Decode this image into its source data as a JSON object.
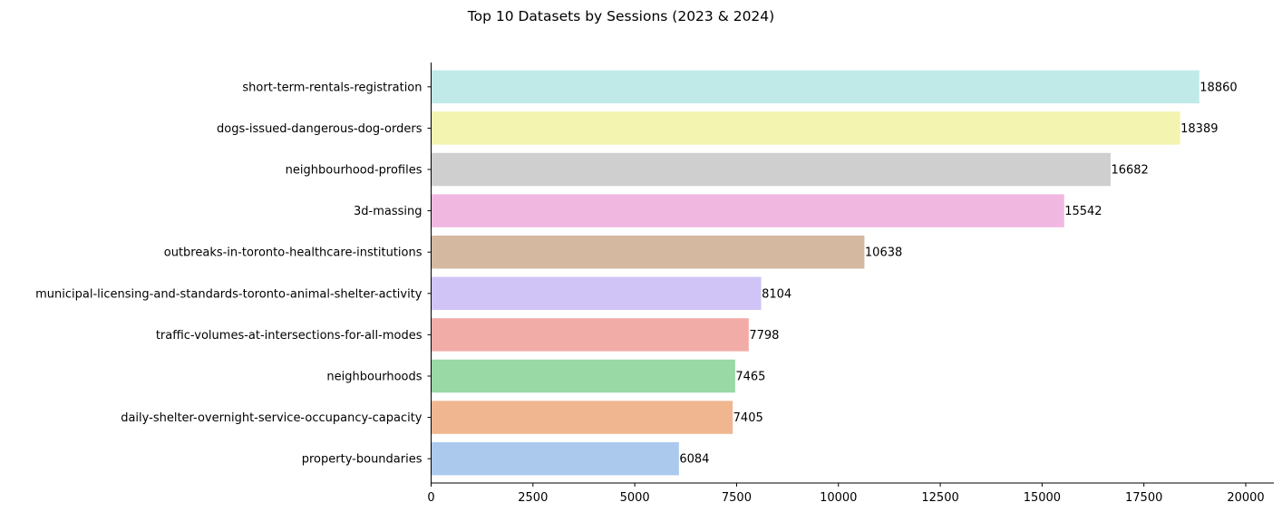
{
  "chart_data": {
    "type": "bar",
    "orientation": "horizontal",
    "title": "Top 10 Datasets by Sessions (2023 & 2024)",
    "xlabel": "",
    "ylabel": "",
    "xlim": [
      0,
      20000
    ],
    "x_ticks": [
      0,
      2500,
      5000,
      7500,
      10000,
      12500,
      15000,
      17500,
      20000
    ],
    "grid": false,
    "legend": "none",
    "categories": [
      "short-term-rentals-registration",
      "dogs-issued-dangerous-dog-orders",
      "neighbourhood-profiles",
      "3d-massing",
      "outbreaks-in-toronto-healthcare-institutions",
      "municipal-licensing-and-standards-toronto-animal-shelter-activity",
      "traffic-volumes-at-intersections-for-all-modes",
      "neighbourhoods",
      "daily-shelter-overnight-service-occupancy-capacity",
      "property-boundaries"
    ],
    "values": [
      18860,
      18389,
      16682,
      15542,
      10638,
      8104,
      7798,
      7465,
      7405,
      6084
    ],
    "colors": [
      "#c0eae8",
      "#f3f4b0",
      "#cfcfcf",
      "#f0b8e0",
      "#d4b9a0",
      "#d0c4f7",
      "#f2aca8",
      "#98d9a6",
      "#f0b690",
      "#abc9ed"
    ]
  }
}
